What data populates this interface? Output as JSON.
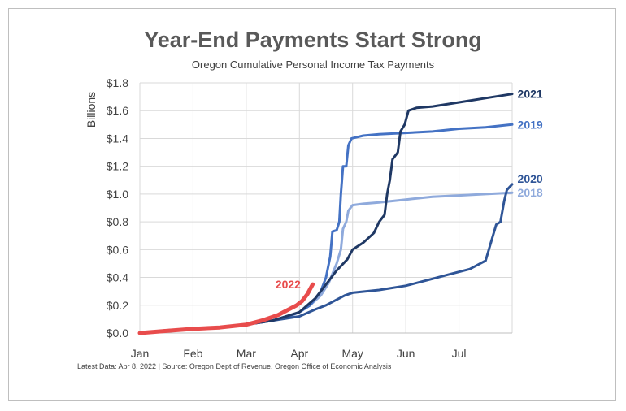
{
  "chart_data": {
    "type": "line",
    "title": "Year-End Payments Start Strong",
    "subtitle": "Oregon Cumulative Personal Income Tax Payments",
    "ylabel": "Billions",
    "xlabel": "",
    "footnote": "Latest Data: Apr 8, 2022  |  Source: Oregon Dept of Revenue, Oregon Office of Economic Analysis",
    "ylim": [
      0,
      1.8
    ],
    "y_ticks": [
      "$0.0",
      "$0.2",
      "$0.4",
      "$0.6",
      "$0.8",
      "$1.0",
      "$1.2",
      "$1.4",
      "$1.6",
      "$1.8"
    ],
    "y_tick_values": [
      0,
      0.2,
      0.4,
      0.6,
      0.8,
      1.0,
      1.2,
      1.4,
      1.6,
      1.8
    ],
    "x_ticks": [
      "Jan",
      "Feb",
      "Mar",
      "Apr",
      "May",
      "Jun",
      "Jul"
    ],
    "x_tick_values": [
      0,
      1,
      2,
      3,
      4,
      5,
      6
    ],
    "xlim": [
      0,
      7
    ],
    "grid": true,
    "legend": "direct labels at right",
    "series": [
      {
        "name": "2018",
        "color": "#8faadc",
        "width": 3,
        "points": [
          [
            0,
            0
          ],
          [
            0.5,
            0.02
          ],
          [
            1,
            0.03
          ],
          [
            1.5,
            0.04
          ],
          [
            2,
            0.06
          ],
          [
            2.5,
            0.09
          ],
          [
            2.8,
            0.12
          ],
          [
            3,
            0.15
          ],
          [
            3.2,
            0.2
          ],
          [
            3.4,
            0.27
          ],
          [
            3.55,
            0.36
          ],
          [
            3.7,
            0.5
          ],
          [
            3.78,
            0.6
          ],
          [
            3.82,
            0.75
          ],
          [
            3.88,
            0.8
          ],
          [
            3.92,
            0.88
          ],
          [
            4,
            0.92
          ],
          [
            4.2,
            0.93
          ],
          [
            4.5,
            0.94
          ],
          [
            5,
            0.96
          ],
          [
            5.5,
            0.98
          ],
          [
            6,
            0.99
          ],
          [
            6.5,
            1.0
          ],
          [
            7,
            1.01
          ]
        ]
      },
      {
        "name": "2019",
        "color": "#4472c4",
        "width": 3,
        "points": [
          [
            0,
            0
          ],
          [
            0.5,
            0.02
          ],
          [
            1,
            0.03
          ],
          [
            1.5,
            0.04
          ],
          [
            2,
            0.06
          ],
          [
            2.5,
            0.09
          ],
          [
            2.8,
            0.12
          ],
          [
            3,
            0.15
          ],
          [
            3.2,
            0.2
          ],
          [
            3.4,
            0.3
          ],
          [
            3.5,
            0.4
          ],
          [
            3.58,
            0.55
          ],
          [
            3.62,
            0.73
          ],
          [
            3.7,
            0.74
          ],
          [
            3.75,
            0.8
          ],
          [
            3.78,
            1.0
          ],
          [
            3.82,
            1.2
          ],
          [
            3.88,
            1.2
          ],
          [
            3.92,
            1.35
          ],
          [
            3.98,
            1.4
          ],
          [
            4.2,
            1.42
          ],
          [
            4.5,
            1.43
          ],
          [
            5,
            1.44
          ],
          [
            5.5,
            1.45
          ],
          [
            6,
            1.47
          ],
          [
            6.5,
            1.48
          ],
          [
            7,
            1.5
          ]
        ]
      },
      {
        "name": "2020",
        "color": "#2f5597",
        "width": 3,
        "points": [
          [
            0,
            0
          ],
          [
            0.5,
            0.02
          ],
          [
            1,
            0.03
          ],
          [
            1.5,
            0.04
          ],
          [
            2,
            0.06
          ],
          [
            2.5,
            0.09
          ],
          [
            3,
            0.12
          ],
          [
            3.3,
            0.17
          ],
          [
            3.5,
            0.2
          ],
          [
            3.7,
            0.24
          ],
          [
            3.85,
            0.27
          ],
          [
            4,
            0.29
          ],
          [
            4.5,
            0.31
          ],
          [
            5,
            0.34
          ],
          [
            5.3,
            0.37
          ],
          [
            5.6,
            0.4
          ],
          [
            5.8,
            0.42
          ],
          [
            6,
            0.44
          ],
          [
            6.2,
            0.46
          ],
          [
            6.4,
            0.5
          ],
          [
            6.5,
            0.52
          ],
          [
            6.6,
            0.65
          ],
          [
            6.7,
            0.78
          ],
          [
            6.78,
            0.8
          ],
          [
            6.85,
            0.95
          ],
          [
            6.9,
            1.03
          ],
          [
            7,
            1.07
          ]
        ]
      },
      {
        "name": "2021",
        "color": "#1f3864",
        "width": 3,
        "points": [
          [
            0,
            0
          ],
          [
            0.5,
            0.02
          ],
          [
            1,
            0.03
          ],
          [
            1.5,
            0.04
          ],
          [
            2,
            0.06
          ],
          [
            2.5,
            0.09
          ],
          [
            3,
            0.15
          ],
          [
            3.3,
            0.25
          ],
          [
            3.5,
            0.35
          ],
          [
            3.7,
            0.45
          ],
          [
            3.9,
            0.53
          ],
          [
            4,
            0.6
          ],
          [
            4.2,
            0.65
          ],
          [
            4.4,
            0.72
          ],
          [
            4.5,
            0.8
          ],
          [
            4.6,
            0.85
          ],
          [
            4.65,
            1.0
          ],
          [
            4.7,
            1.1
          ],
          [
            4.75,
            1.25
          ],
          [
            4.85,
            1.3
          ],
          [
            4.9,
            1.45
          ],
          [
            4.98,
            1.5
          ],
          [
            5.05,
            1.6
          ],
          [
            5.2,
            1.62
          ],
          [
            5.5,
            1.63
          ],
          [
            6,
            1.66
          ],
          [
            6.5,
            1.69
          ],
          [
            7,
            1.72
          ]
        ]
      },
      {
        "name": "2022",
        "color": "#e84c4c",
        "width": 5,
        "points": [
          [
            0,
            0
          ],
          [
            0.5,
            0.015
          ],
          [
            1,
            0.03
          ],
          [
            1.5,
            0.04
          ],
          [
            2,
            0.06
          ],
          [
            2.3,
            0.09
          ],
          [
            2.6,
            0.13
          ],
          [
            2.8,
            0.17
          ],
          [
            2.95,
            0.2
          ],
          [
            3.05,
            0.23
          ],
          [
            3.15,
            0.28
          ],
          [
            3.25,
            0.35
          ]
        ]
      }
    ],
    "labels": [
      {
        "text": "2021",
        "series": "2021",
        "x": 7.1,
        "y": 1.72,
        "color": "#1f3864"
      },
      {
        "text": "2019",
        "series": "2019",
        "x": 7.1,
        "y": 1.5,
        "color": "#4472c4"
      },
      {
        "text": "2020",
        "series": "2020",
        "x": 7.1,
        "y": 1.11,
        "color": "#2f5597"
      },
      {
        "text": "2018",
        "series": "2018",
        "x": 7.1,
        "y": 1.01,
        "color": "#8faadc"
      },
      {
        "text": "2022",
        "series": "2022",
        "x": 2.55,
        "y": 0.35,
        "color": "#e84c4c"
      }
    ]
  }
}
